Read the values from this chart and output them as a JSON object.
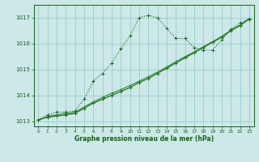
{
  "background_color": "#cce8e8",
  "plot_bg_color": "#cce8e8",
  "grid_color": "#99cccc",
  "line_color_dark": "#1a5c1a",
  "line_color_med": "#2d8c2d",
  "xlabel": "Graphe pression niveau de la mer (hPa)",
  "ylim": [
    1012.8,
    1017.5
  ],
  "xlim": [
    -0.5,
    23.5
  ],
  "yticks": [
    1013,
    1014,
    1015,
    1016,
    1017
  ],
  "xticks": [
    0,
    1,
    2,
    3,
    4,
    5,
    6,
    7,
    8,
    9,
    10,
    11,
    12,
    13,
    14,
    15,
    16,
    17,
    18,
    19,
    20,
    21,
    22,
    23
  ],
  "series1_x": [
    0,
    1,
    2,
    3,
    4,
    5,
    6,
    7,
    8,
    9,
    10,
    11,
    12,
    13,
    14,
    15,
    16,
    17,
    18,
    19,
    20,
    21,
    22,
    23
  ],
  "series1_y": [
    1013.05,
    1013.25,
    1013.35,
    1013.35,
    1013.4,
    1013.85,
    1014.55,
    1014.85,
    1015.25,
    1015.8,
    1016.3,
    1017.0,
    1017.1,
    1017.0,
    1016.6,
    1016.2,
    1016.2,
    1015.85,
    1015.75,
    1015.75,
    1016.15,
    1016.55,
    1016.8,
    1016.95
  ],
  "series2_x": [
    0,
    1,
    2,
    3,
    4,
    5,
    6,
    7,
    8,
    9,
    10,
    11,
    12,
    13,
    14,
    15,
    16,
    17,
    18,
    19,
    20,
    21,
    22,
    23
  ],
  "series2_y": [
    1013.05,
    1013.15,
    1013.2,
    1013.25,
    1013.3,
    1013.5,
    1013.7,
    1013.85,
    1014.0,
    1014.15,
    1014.3,
    1014.5,
    1014.65,
    1014.85,
    1015.05,
    1015.25,
    1015.45,
    1015.65,
    1015.85,
    1016.05,
    1016.25,
    1016.5,
    1016.7,
    1016.95
  ],
  "series3_x": [
    0,
    1,
    2,
    3,
    4,
    5,
    6,
    7,
    8,
    9,
    10,
    11,
    12,
    13,
    14,
    15,
    16,
    17,
    18,
    19,
    20,
    21,
    22,
    23
  ],
  "series3_y": [
    1013.05,
    1013.18,
    1013.25,
    1013.3,
    1013.35,
    1013.55,
    1013.75,
    1013.92,
    1014.08,
    1014.22,
    1014.38,
    1014.55,
    1014.72,
    1014.9,
    1015.1,
    1015.3,
    1015.5,
    1015.68,
    1015.88,
    1016.08,
    1016.28,
    1016.52,
    1016.72,
    1016.97
  ]
}
